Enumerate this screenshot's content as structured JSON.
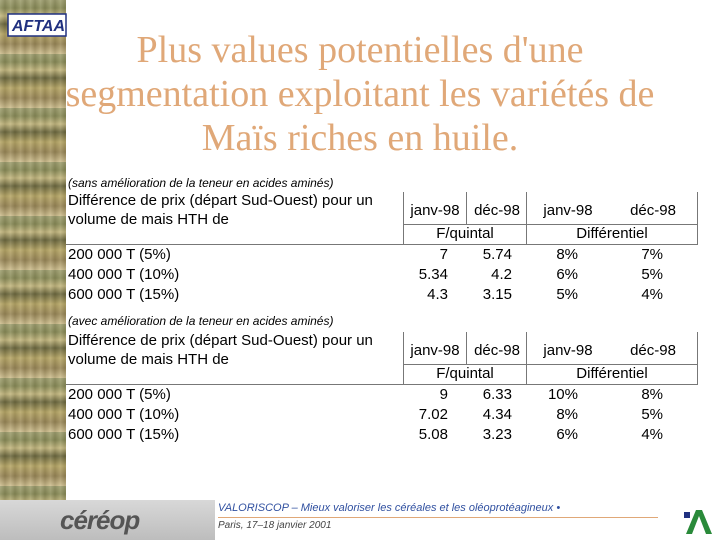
{
  "title": {
    "line1": "Plus values potentielles d'une",
    "line2": "segmentation exploitant les variétés de",
    "line3": "Maïs riches en huile."
  },
  "brand": {
    "aft": "AFTAA",
    "cereop": "céréop"
  },
  "table1": {
    "subtitle": "(sans amélioration de la teneur en acides aminés)",
    "header_line1": "Différence de prix (départ Sud-Ouest) pour un",
    "header_line2": "volume de mais HTH de",
    "col_dates": [
      "janv-98",
      "déc-98",
      "janv-98",
      "déc-98"
    ],
    "group1": "F/quintal",
    "group2": "Différentiel",
    "rows": [
      {
        "label": "200 000 T (5%)",
        "values": [
          "7",
          "5.74",
          "8%",
          "7%"
        ]
      },
      {
        "label": "400 000 T (10%)",
        "values": [
          "5.34",
          "4.2",
          "6%",
          "5%"
        ]
      },
      {
        "label": "600 000 T (15%)",
        "values": [
          "4.3",
          "3.15",
          "5%",
          "4%"
        ]
      }
    ]
  },
  "table2": {
    "subtitle": "(avec amélioration de la teneur en acides aminés)",
    "header_line1": "Différence de prix (départ Sud-Ouest) pour un",
    "header_line2": "volume de mais HTH de",
    "col_dates": [
      "janv-98",
      "déc-98",
      "janv-98",
      "déc-98"
    ],
    "group1": "F/quintal",
    "group2": "Différentiel",
    "rows": [
      {
        "label": "200 000 T (5%)",
        "values": [
          "9",
          "6.33",
          "10%",
          "8%"
        ]
      },
      {
        "label": "400 000 T (10%)",
        "values": [
          "7.02",
          "4.34",
          "8%",
          "5%"
        ]
      },
      {
        "label": "600 000 T (15%)",
        "values": [
          "5.08",
          "3.23",
          "6%",
          "4%"
        ]
      }
    ]
  },
  "footer": {
    "text": "VALORISCOP – Mieux valoriser les céréales et les oléoprotéagineux •",
    "sub": "Paris, 17–18 janvier 2001"
  },
  "colors": {
    "title": "#e0a878",
    "footer_text": "#3050a0"
  }
}
